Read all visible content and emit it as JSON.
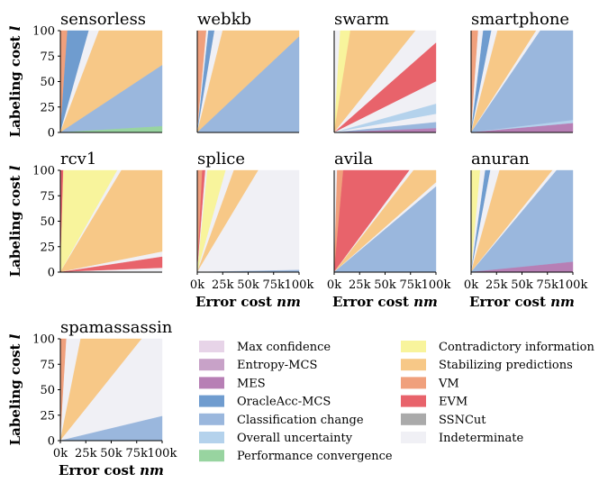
{
  "colors": {
    "Max confidence": "#e7d4e8",
    "Entropy-MCS": "#c8a2c8",
    "MES": "#b77fb5",
    "OracleAcc-MCS": "#6f9ccf",
    "Classification change": "#9ab7dd",
    "Overall uncertainty": "#b4d2ec",
    "Performance convergence": "#98d4a0",
    "Contradictory information": "#f8f49c",
    "Stabilizing predictions": "#f7c887",
    "VM": "#f0a07c",
    "EVM": "#e8636b",
    "SSNCut": "#aaaaaa",
    "Indeterminate": "#f0f0f5"
  },
  "legend": {
    "col1": [
      "Max confidence",
      "Entropy-MCS",
      "MES",
      "OracleAcc-MCS",
      "Classification change",
      "Overall uncertainty",
      "Performance convergence"
    ],
    "col2": [
      "Contradictory information",
      "Stabilizing predictions",
      "VM",
      "EVM",
      "SSNCut",
      "Indeterminate"
    ]
  },
  "axes": {
    "ylabel_prefix": "Labeling cost ",
    "ylabel_var": "l",
    "xlabel_prefix": "Error cost ",
    "xlabel_var": "nm",
    "yticks": [
      "0",
      "25",
      "50",
      "75",
      "100"
    ],
    "xticks": [
      "0k",
      "25k",
      "50k",
      "75k",
      "100k"
    ]
  },
  "chart_data": [
    {
      "type": "area",
      "title": "sensorless",
      "xlim": [
        0,
        100000
      ],
      "ylim": [
        0,
        100
      ],
      "regions": [
        {
          "method": "VM",
          "angle_lo": 0.965,
          "angle_hi": 1.0
        },
        {
          "method": "OracleAcc-MCS",
          "angle_lo": 0.86,
          "angle_hi": 0.965
        },
        {
          "method": "Indeterminate",
          "angle_lo": 0.81,
          "angle_hi": 0.86
        },
        {
          "method": "Stabilizing predictions",
          "angle_lo": 0.33,
          "angle_hi": 0.81
        },
        {
          "method": "Classification change",
          "angle_lo": 0.03,
          "angle_hi": 0.33
        },
        {
          "method": "Performance convergence",
          "angle_lo": 0.0,
          "angle_hi": 0.03
        }
      ]
    },
    {
      "type": "area",
      "title": "webkb",
      "xlim": [
        0,
        100000
      ],
      "ylim": [
        0,
        100
      ],
      "regions": [
        {
          "method": "VM",
          "angle_lo": 0.955,
          "angle_hi": 1.0
        },
        {
          "method": "Indeterminate",
          "angle_lo": 0.945,
          "angle_hi": 0.955
        },
        {
          "method": "OracleAcc-MCS",
          "angle_lo": 0.915,
          "angle_hi": 0.945
        },
        {
          "method": "Indeterminate",
          "angle_lo": 0.875,
          "angle_hi": 0.915
        },
        {
          "method": "Stabilizing predictions",
          "angle_lo": 0.47,
          "angle_hi": 0.875
        },
        {
          "method": "Classification change",
          "angle_lo": 0.0,
          "angle_hi": 0.47
        }
      ]
    },
    {
      "type": "area",
      "title": "swarm",
      "xlim": [
        0,
        100000
      ],
      "ylim": [
        0,
        100
      ],
      "regions": [
        {
          "method": "Indeterminate",
          "angle_lo": 0.97,
          "angle_hi": 1.0
        },
        {
          "method": "Contradictory information",
          "angle_lo": 0.92,
          "angle_hi": 0.97
        },
        {
          "method": "Stabilizing predictions",
          "angle_lo": 0.6,
          "angle_hi": 0.92
        },
        {
          "method": "Indeterminate",
          "angle_lo": 0.44,
          "angle_hi": 0.6
        },
        {
          "method": "EVM",
          "angle_lo": 0.25,
          "angle_hi": 0.44
        },
        {
          "method": "Indeterminate",
          "angle_lo": 0.14,
          "angle_hi": 0.25
        },
        {
          "method": "Overall uncertainty",
          "angle_lo": 0.09,
          "angle_hi": 0.14
        },
        {
          "method": "Indeterminate",
          "angle_lo": 0.05,
          "angle_hi": 0.09
        },
        {
          "method": "Classification change",
          "angle_lo": 0.02,
          "angle_hi": 0.05
        },
        {
          "method": "MES",
          "angle_lo": 0.0,
          "angle_hi": 0.02
        }
      ]
    },
    {
      "type": "area",
      "title": "smartphone",
      "xlim": [
        0,
        100000
      ],
      "ylim": [
        0,
        100
      ],
      "regions": [
        {
          "method": "VM",
          "angle_lo": 0.965,
          "angle_hi": 1.0
        },
        {
          "method": "Indeterminate",
          "angle_lo": 0.94,
          "angle_hi": 0.965
        },
        {
          "method": "OracleAcc-MCS",
          "angle_lo": 0.9,
          "angle_hi": 0.94
        },
        {
          "method": "Indeterminate",
          "angle_lo": 0.87,
          "angle_hi": 0.9
        },
        {
          "method": "Stabilizing predictions",
          "angle_lo": 0.68,
          "angle_hi": 0.87
        },
        {
          "method": "Indeterminate",
          "angle_lo": 0.66,
          "angle_hi": 0.68
        },
        {
          "method": "Classification change",
          "angle_lo": 0.06,
          "angle_hi": 0.66
        },
        {
          "method": "Overall uncertainty",
          "angle_lo": 0.045,
          "angle_hi": 0.06
        },
        {
          "method": "MES",
          "angle_lo": 0.0,
          "angle_hi": 0.045
        }
      ]
    },
    {
      "type": "area",
      "title": "rcv1",
      "xlim": [
        0,
        100000
      ],
      "ylim": [
        0,
        100
      ],
      "regions": [
        {
          "method": "EVM",
          "angle_lo": 0.985,
          "angle_hi": 1.0
        },
        {
          "method": "Contradictory information",
          "angle_lo": 0.72,
          "angle_hi": 0.985
        },
        {
          "method": "Indeterminate",
          "angle_lo": 0.7,
          "angle_hi": 0.72
        },
        {
          "method": "Stabilizing predictions",
          "angle_lo": 0.1,
          "angle_hi": 0.7
        },
        {
          "method": "Indeterminate",
          "angle_lo": 0.075,
          "angle_hi": 0.1
        },
        {
          "method": "EVM",
          "angle_lo": 0.02,
          "angle_hi": 0.075
        },
        {
          "method": "Indeterminate",
          "angle_lo": 0.0,
          "angle_hi": 0.02
        }
      ]
    },
    {
      "type": "area",
      "title": "splice",
      "xlim": [
        0,
        100000
      ],
      "ylim": [
        0,
        100
      ],
      "regions": [
        {
          "method": "VM",
          "angle_lo": 0.975,
          "angle_hi": 1.0
        },
        {
          "method": "EVM",
          "angle_lo": 0.96,
          "angle_hi": 0.975
        },
        {
          "method": "Indeterminate",
          "angle_lo": 0.95,
          "angle_hi": 0.96
        },
        {
          "method": "Contradictory information",
          "angle_lo": 0.86,
          "angle_hi": 0.95
        },
        {
          "method": "Indeterminate",
          "angle_lo": 0.82,
          "angle_hi": 0.86
        },
        {
          "method": "Stabilizing predictions",
          "angle_lo": 0.7,
          "angle_hi": 0.82
        },
        {
          "method": "Indeterminate",
          "angle_lo": 0.01,
          "angle_hi": 0.7
        },
        {
          "method": "Classification change",
          "angle_lo": 0.0,
          "angle_hi": 0.01
        }
      ]
    },
    {
      "type": "area",
      "title": "avila",
      "xlim": [
        0,
        100000
      ],
      "ylim": [
        0,
        100
      ],
      "regions": [
        {
          "method": "Indeterminate",
          "angle_lo": 0.985,
          "angle_hi": 1.0
        },
        {
          "method": "VM",
          "angle_lo": 0.955,
          "angle_hi": 0.985
        },
        {
          "method": "EVM",
          "angle_lo": 0.63,
          "angle_hi": 0.955
        },
        {
          "method": "Indeterminate",
          "angle_lo": 0.61,
          "angle_hi": 0.63
        },
        {
          "method": "Stabilizing predictions",
          "angle_lo": 0.44,
          "angle_hi": 0.61
        },
        {
          "method": "Indeterminate",
          "angle_lo": 0.42,
          "angle_hi": 0.44
        },
        {
          "method": "Classification change",
          "angle_lo": 0.0,
          "angle_hi": 0.42
        }
      ]
    },
    {
      "type": "area",
      "title": "anuran",
      "xlim": [
        0,
        100000
      ],
      "ylim": [
        0,
        100
      ],
      "regions": [
        {
          "method": "Contradictory information",
          "angle_lo": 0.955,
          "angle_hi": 1.0
        },
        {
          "method": "Indeterminate",
          "angle_lo": 0.93,
          "angle_hi": 0.955
        },
        {
          "method": "OracleAcc-MCS",
          "angle_lo": 0.905,
          "angle_hi": 0.93
        },
        {
          "method": "Indeterminate",
          "angle_lo": 0.86,
          "angle_hi": 0.905
        },
        {
          "method": "Stabilizing predictions",
          "angle_lo": 0.6,
          "angle_hi": 0.86
        },
        {
          "method": "Indeterminate",
          "angle_lo": 0.58,
          "angle_hi": 0.6
        },
        {
          "method": "Classification change",
          "angle_lo": 0.05,
          "angle_hi": 0.58
        },
        {
          "method": "MES",
          "angle_lo": 0.0,
          "angle_hi": 0.05
        }
      ]
    },
    {
      "type": "area",
      "title": "spamassassin",
      "xlim": [
        0,
        100000
      ],
      "ylim": [
        0,
        100
      ],
      "regions": [
        {
          "method": "VM",
          "angle_lo": 0.97,
          "angle_hi": 1.0
        },
        {
          "method": "Indeterminate",
          "angle_lo": 0.9,
          "angle_hi": 0.97
        },
        {
          "method": "Stabilizing predictions",
          "angle_lo": 0.6,
          "angle_hi": 0.9
        },
        {
          "method": "Indeterminate",
          "angle_lo": 0.12,
          "angle_hi": 0.6
        },
        {
          "method": "Classification change",
          "angle_lo": 0.0,
          "angle_hi": 0.12
        }
      ]
    }
  ]
}
